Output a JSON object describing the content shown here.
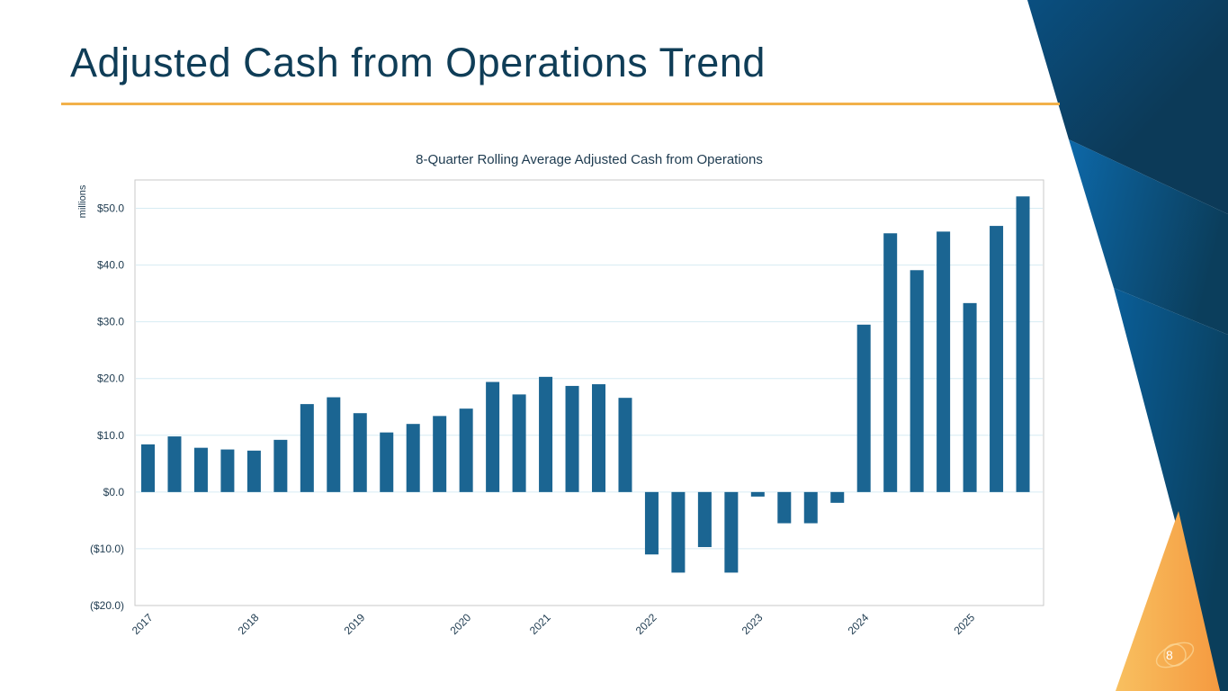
{
  "slide": {
    "title": "Adjusted Cash from Operations Trend",
    "page_number": "8",
    "colors": {
      "title": "#0f3d57",
      "rule": "#f2b14a",
      "bar": "#1b6592",
      "gridline": "#d6ebf3"
    }
  },
  "chart_data": {
    "type": "bar",
    "title": "8-Quarter Rolling Average Adjusted Cash from Operations",
    "ylabel": "millions",
    "xlabel": "",
    "ylim": [
      -20,
      55
    ],
    "yticks": [
      50,
      40,
      30,
      20,
      10,
      0,
      -10,
      -20
    ],
    "ytick_labels": [
      "$50.0",
      "$40.0",
      "$30.0",
      "$20.0",
      "$10.0",
      "$0.0",
      "($10.0)",
      "($20.0)"
    ],
    "grid": true,
    "x_labels": [
      {
        "label": "2017",
        "index": 0
      },
      {
        "label": "2018",
        "index": 4
      },
      {
        "label": "2019",
        "index": 8
      },
      {
        "label": "2020",
        "index": 12
      },
      {
        "label": "2021",
        "index": 15
      },
      {
        "label": "2022",
        "index": 19
      },
      {
        "label": "2023",
        "index": 23
      },
      {
        "label": "2024",
        "index": 27
      },
      {
        "label": "2025",
        "index": 31
      }
    ],
    "values": [
      8.4,
      9.8,
      7.8,
      7.5,
      7.3,
      9.2,
      15.5,
      16.7,
      13.9,
      10.5,
      12.0,
      13.4,
      14.7,
      19.4,
      17.2,
      20.3,
      18.7,
      19.0,
      16.6,
      -11.0,
      -14.2,
      -9.7,
      -14.2,
      -0.8,
      -5.5,
      -5.5,
      -1.9,
      29.5,
      45.6,
      39.1,
      45.9,
      33.3,
      46.9,
      52.1
    ]
  }
}
